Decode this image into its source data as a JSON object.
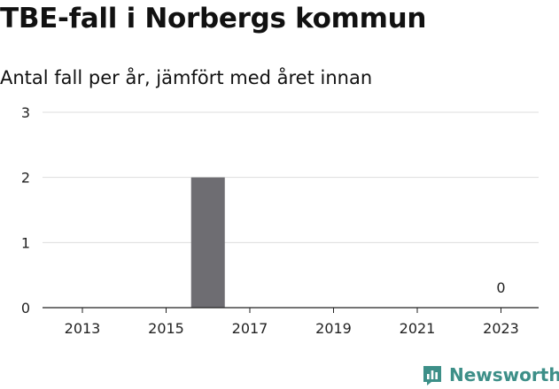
{
  "title": "TBE-fall i Norbergs kommun",
  "subtitle": "Antal fall per år, jämfört med året innan",
  "brand": {
    "name": "Newsworthy",
    "color": "#3d8f88",
    "icon": "newsworthy-logo-icon"
  },
  "colors": {
    "bar": "#6e6d72",
    "grid": "#dddddd",
    "axis": "#222222"
  },
  "chart_data": {
    "type": "bar",
    "title": "TBE-fall i Norbergs kommun",
    "subtitle": "Antal fall per år, jämfört med året innan",
    "xlabel": "",
    "ylabel": "",
    "x": [
      2013,
      2014,
      2015,
      2016,
      2017,
      2018,
      2019,
      2020,
      2021,
      2022,
      2023
    ],
    "values": [
      0,
      0,
      0,
      2,
      0,
      0,
      0,
      0,
      0,
      0,
      0
    ],
    "x_ticks": [
      "2013",
      "2015",
      "2017",
      "2019",
      "2021",
      "2023"
    ],
    "y_ticks": [
      "0",
      "1",
      "2",
      "3"
    ],
    "ylim": [
      0,
      3
    ],
    "grid": true,
    "legend": "none",
    "annotations": [
      {
        "x": 2023,
        "text": "0"
      }
    ]
  }
}
